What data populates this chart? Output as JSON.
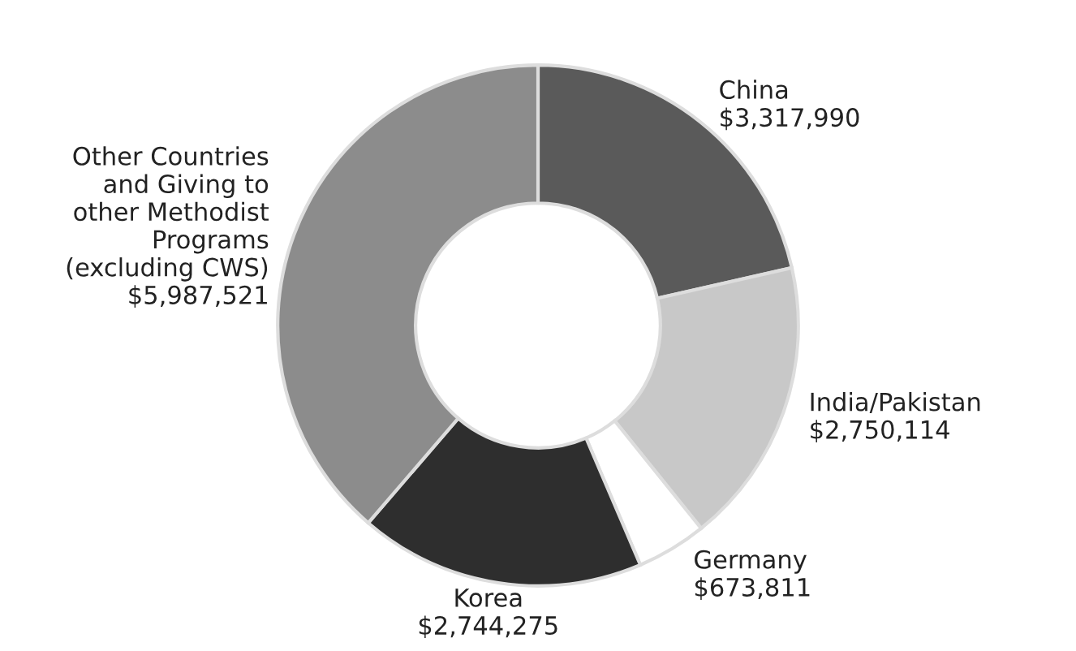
{
  "chart_data": {
    "type": "donut",
    "categories": [
      "China",
      "India/Pakistan",
      "Germany",
      "Korea",
      "Other Countries\nand Giving to\nother Methodist\nPrograms\n(excluding CWS)"
    ],
    "values": [
      3317990,
      2750114,
      673811,
      2744275,
      5987521
    ],
    "value_labels": [
      "$3,317,990",
      "$2,750,114",
      "$673,811",
      "$2,744,275",
      "$5,987,521"
    ],
    "colors": [
      "#5a5a5a",
      "#c8c8c8",
      "#ffffff",
      "#2e2e2e",
      "#8c8c8c"
    ]
  }
}
